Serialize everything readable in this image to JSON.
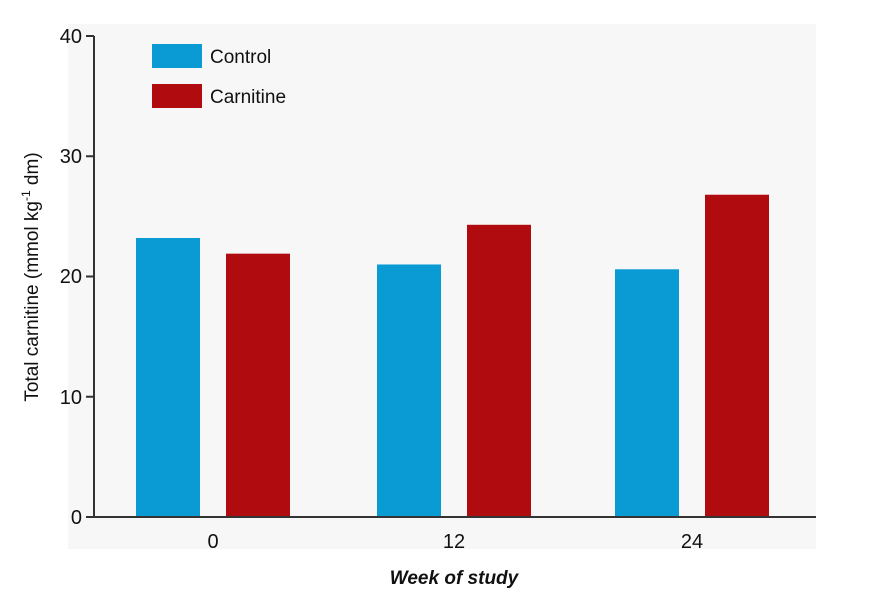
{
  "chart_data": {
    "type": "bar",
    "title": "",
    "xlabel": "Week of study",
    "ylabel_main": "Total carnitine (mmol kg",
    "ylabel_sup": "-1",
    "ylabel_tail": " dm)",
    "categories": [
      "0",
      "12",
      "24"
    ],
    "series": [
      {
        "name": "Control",
        "color": "#0a9bd4",
        "values": [
          23.2,
          21.0,
          20.6
        ]
      },
      {
        "name": "Carnitine",
        "color": "#b00b0e",
        "values": [
          21.9,
          24.3,
          26.8
        ]
      }
    ],
    "yticks": [
      "0",
      "10",
      "20",
      "30",
      "40"
    ],
    "ylim": [
      0,
      40
    ],
    "grid": false,
    "legend_position": "top-left"
  }
}
